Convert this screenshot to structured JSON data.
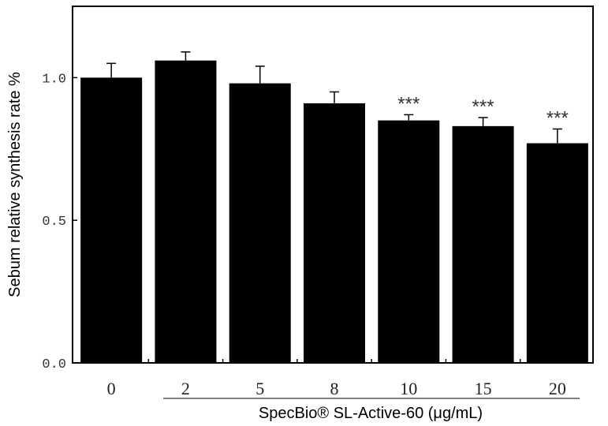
{
  "chart_data": {
    "type": "bar",
    "title": "",
    "xlabel": "SpecBio® SL-Active-60 (μg/mL)",
    "ylabel": "Sebum relative synthesis rate %",
    "categories": [
      "0",
      "2",
      "5",
      "8",
      "10",
      "15",
      "20"
    ],
    "values": [
      1.0,
      1.06,
      0.98,
      0.91,
      0.85,
      0.83,
      0.77
    ],
    "error_upper": [
      1.05,
      1.09,
      1.04,
      0.95,
      0.87,
      0.86,
      0.82
    ],
    "annotations": [
      "",
      "",
      "",
      "",
      "***",
      "***",
      "***"
    ],
    "ylim": [
      0,
      1.25
    ],
    "yticks": [
      0.0,
      0.5,
      1.0
    ],
    "ytick_labels": [
      "0.0",
      "0.5",
      "1.0"
    ],
    "grid": false,
    "bar_color": "#000000"
  }
}
